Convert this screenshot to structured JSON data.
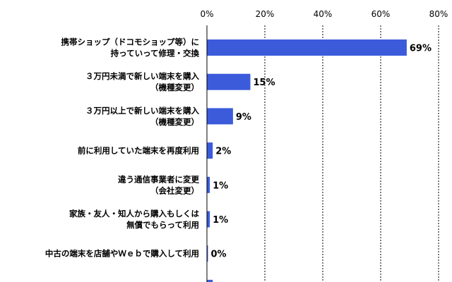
{
  "colors": {
    "bar": "#3b5bdb",
    "axis": "#000000"
  },
  "chart_data": {
    "type": "bar",
    "orientation": "horizontal",
    "x_ticks": [
      "0%",
      "20%",
      "40%",
      "60%",
      "80%"
    ],
    "xlim": [
      0,
      80
    ],
    "grid": true,
    "categories": [
      [
        "携帯ショップ（ドコモショップ等）に",
        "持っていって修理・交換"
      ],
      [
        "３万円未満で新しい端末を購入",
        "（機種変更）"
      ],
      [
        "３万円以上で新しい端末を購入",
        "（機種変更）"
      ],
      [
        "前に利用していた端末を再度利用"
      ],
      [
        "違う通信事業者に変更",
        "（会社変更）"
      ],
      [
        "家族・友人・知人から購入もしくは",
        "無償でもらって利用"
      ],
      [
        "中古の端末を店舗やＷｅｂで購入して利用"
      ]
    ],
    "values": [
      69,
      15,
      9,
      2,
      1,
      1,
      0
    ],
    "data_labels": [
      "69%",
      "15%",
      "9%",
      "2%",
      "1%",
      "1%",
      "0%"
    ],
    "partial_next_value": 2
  }
}
